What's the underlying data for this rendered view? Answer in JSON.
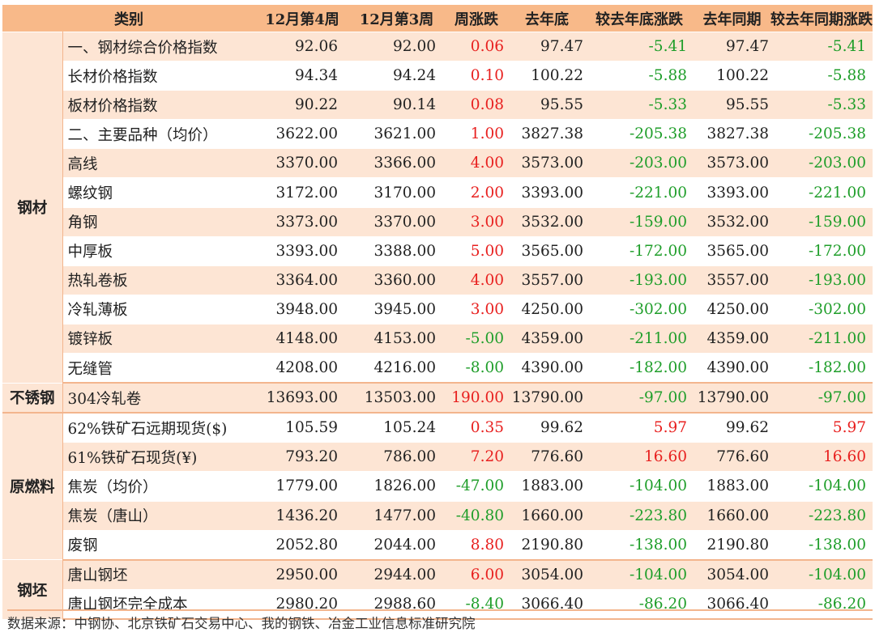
{
  "headers": [
    "类别",
    "12月第4周",
    "12月第3周",
    "周涨跌",
    "去年底",
    "较去年底涨跌",
    "去年同期",
    "较去年同期涨跌"
  ],
  "colors": {
    "header_bg": "#f8b989",
    "band_bg": "#fde5d4",
    "up": "#e8201f",
    "down": "#1f9e2a"
  },
  "groups": [
    {
      "name": "钢材",
      "rows": [
        [
          "一、钢材综合价格指数",
          "92.06",
          "92.00",
          "0.06",
          "97.47",
          "-5.41",
          "97.47",
          "-5.41"
        ],
        [
          "长材价格指数",
          "94.34",
          "94.24",
          "0.10",
          "100.22",
          "-5.88",
          "100.22",
          "-5.88"
        ],
        [
          "板材价格指数",
          "90.22",
          "90.14",
          "0.08",
          "95.55",
          "-5.33",
          "95.55",
          "-5.33"
        ],
        [
          "二、主要品种（均价）",
          "3622.00",
          "3621.00",
          "1.00",
          "3827.38",
          "-205.38",
          "3827.38",
          "-205.38"
        ],
        [
          "高线",
          "3370.00",
          "3366.00",
          "4.00",
          "3573.00",
          "-203.00",
          "3573.00",
          "-203.00"
        ],
        [
          "螺纹钢",
          "3172.00",
          "3170.00",
          "2.00",
          "3393.00",
          "-221.00",
          "3393.00",
          "-221.00"
        ],
        [
          "角钢",
          "3373.00",
          "3370.00",
          "3.00",
          "3532.00",
          "-159.00",
          "3532.00",
          "-159.00"
        ],
        [
          "中厚板",
          "3393.00",
          "3388.00",
          "5.00",
          "3565.00",
          "-172.00",
          "3565.00",
          "-172.00"
        ],
        [
          "热轧卷板",
          "3364.00",
          "3360.00",
          "4.00",
          "3557.00",
          "-193.00",
          "3557.00",
          "-193.00"
        ],
        [
          "冷轧薄板",
          "3948.00",
          "3945.00",
          "3.00",
          "4250.00",
          "-302.00",
          "4250.00",
          "-302.00"
        ],
        [
          "镀锌板",
          "4148.00",
          "4153.00",
          "-5.00",
          "4359.00",
          "-211.00",
          "4359.00",
          "-211.00"
        ],
        [
          "无缝管",
          "4208.00",
          "4216.00",
          "-8.00",
          "4390.00",
          "-182.00",
          "4390.00",
          "-182.00"
        ]
      ]
    },
    {
      "name": "不锈钢",
      "rows": [
        [
          "304冷轧卷",
          "13693.00",
          "13503.00",
          "190.00",
          "13790.00",
          "-97.00",
          "13790.00",
          "-97.00"
        ]
      ]
    },
    {
      "name": "原燃料",
      "rows": [
        [
          "62%铁矿石远期现货($)",
          "105.59",
          "105.24",
          "0.35",
          "99.62",
          "5.97",
          "99.62",
          "5.97"
        ],
        [
          "61%铁矿石现货(¥)",
          "793.20",
          "786.00",
          "7.20",
          "776.60",
          "16.60",
          "776.60",
          "16.60"
        ],
        [
          "焦炭（均价）",
          "1779.00",
          "1826.00",
          "-47.00",
          "1883.00",
          "-104.00",
          "1883.00",
          "-104.00"
        ],
        [
          "焦炭（唐山）",
          "1436.20",
          "1477.00",
          "-40.80",
          "1660.00",
          "-223.80",
          "1660.00",
          "-223.80"
        ],
        [
          "废钢",
          "2052.80",
          "2044.00",
          "8.80",
          "2190.80",
          "-138.00",
          "2190.80",
          "-138.00"
        ]
      ]
    },
    {
      "name": "钢坯",
      "rows": [
        [
          "唐山钢坯",
          "2950.00",
          "2944.00",
          "6.00",
          "3054.00",
          "-104.00",
          "3054.00",
          "-104.00"
        ],
        [
          "唐山钢坯完全成本",
          "2980.20",
          "2988.60",
          "-8.40",
          "3066.40",
          "-86.20",
          "3066.40",
          "-86.20"
        ]
      ]
    }
  ],
  "source": "数据来源：中钢协、北京铁矿石交易中心、我的钢铁、冶金工业信息标准研究院"
}
